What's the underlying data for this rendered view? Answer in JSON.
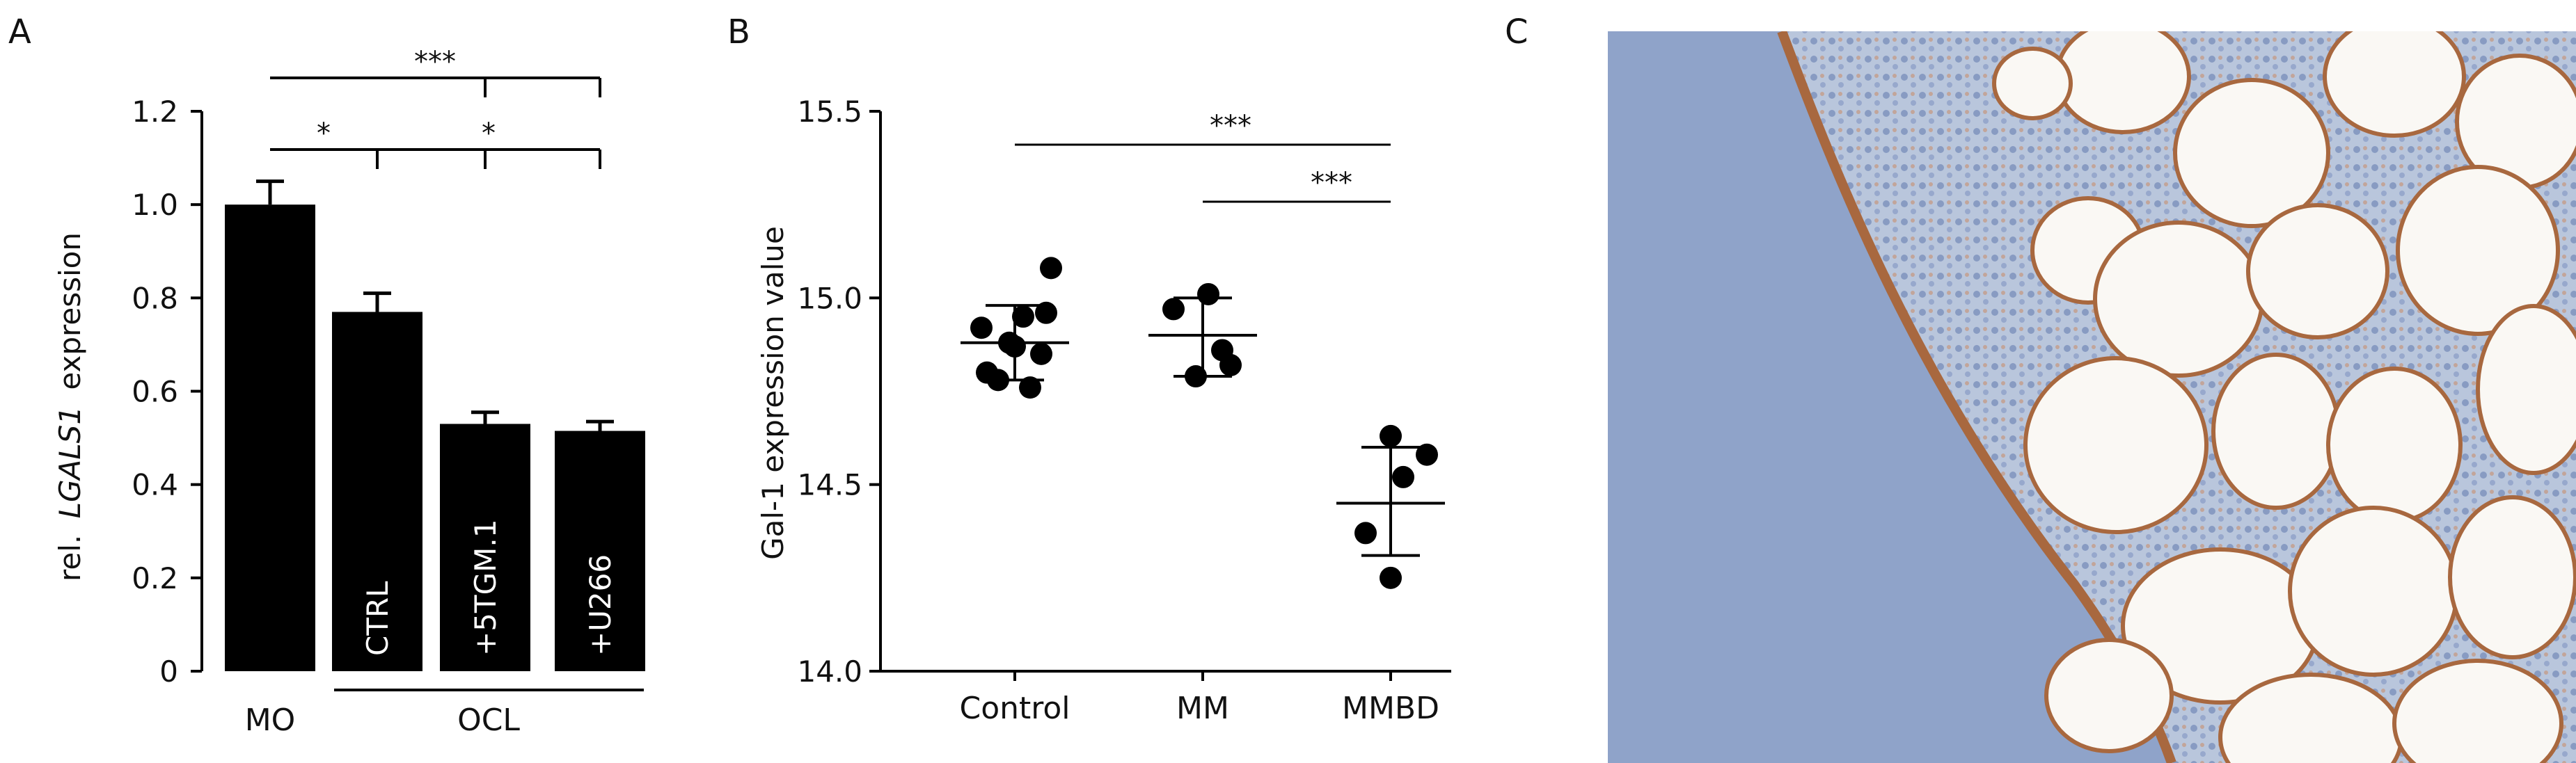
{
  "panel_labels": [
    "A",
    "B",
    "C"
  ],
  "colors": {
    "bar_fill": "#000000",
    "dot_fill": "#000000",
    "tissue_bg": "#b9c6dc",
    "bone_band": "#8fa3c9",
    "stain_brown": "#a8683f",
    "fat_white": "#faf8f4",
    "marrow_blue": "#6f86b8"
  },
  "chart_data": [
    {
      "type": "bar",
      "panel": "A",
      "ylabel_prefix": "rel.",
      "ylabel_gene": "LGALS1",
      "ylabel_suffix": "expression",
      "ylim": [
        0,
        1.2
      ],
      "yticks": [
        "0",
        "0.2",
        "0.4",
        "0.6",
        "0.8",
        "1.0",
        "1.2"
      ],
      "categories": [
        "MO",
        "CTRL",
        "+5TGM.1",
        "+U266"
      ],
      "values": [
        1.0,
        0.77,
        0.53,
        0.515
      ],
      "errors": [
        0.05,
        0.04,
        0.025,
        0.02
      ],
      "inner_labels": [
        "",
        "CTRL",
        "+5TGM.1",
        "+U266"
      ],
      "group_labels": [
        "MO",
        "OCL"
      ],
      "significance": [
        {
          "from": "MO",
          "to": "+U266",
          "mark": "***",
          "ticks_at": [
            "+5TGM.1"
          ]
        },
        {
          "from": "MO",
          "to": "CTRL",
          "mark": "*"
        },
        {
          "from": "CTRL",
          "to": "+U266",
          "mark": "*",
          "ticks_at": [
            "+5TGM.1"
          ]
        }
      ],
      "grid": false
    },
    {
      "type": "scatter",
      "panel": "B",
      "ylabel": "Gal-1 expression value",
      "ylim": [
        14.0,
        15.5
      ],
      "yticks": [
        "14.0",
        "14.5",
        "15.0",
        "15.5"
      ],
      "categories": [
        "Control",
        "MM",
        "MMBD"
      ],
      "series": [
        {
          "points": [
            14.92,
            14.88,
            14.85,
            14.87,
            14.95,
            14.78,
            14.76,
            15.08,
            14.96,
            14.8
          ],
          "mean": 14.88,
          "err_low": 14.78,
          "err_high": 14.98
        },
        {
          "points": [
            14.97,
            15.01,
            14.86,
            14.79,
            14.82
          ],
          "mean": 14.9,
          "err_low": 14.79,
          "err_high": 15.0
        },
        {
          "points": [
            14.63,
            14.58,
            14.52,
            14.37,
            14.25
          ],
          "mean": 14.45,
          "err_low": 14.31,
          "err_high": 14.6
        }
      ],
      "significance": [
        {
          "from": "Control",
          "to": "MMBD",
          "mark": "***"
        },
        {
          "from": "MM",
          "to": "MMBD",
          "mark": "***"
        }
      ],
      "grid": false
    }
  ]
}
